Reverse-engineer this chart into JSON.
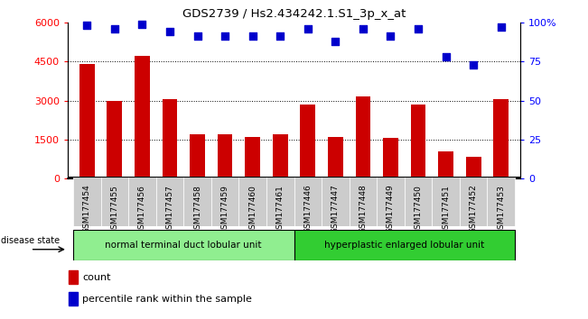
{
  "title": "GDS2739 / Hs2.434242.1.S1_3p_x_at",
  "samples": [
    "GSM177454",
    "GSM177455",
    "GSM177456",
    "GSM177457",
    "GSM177458",
    "GSM177459",
    "GSM177460",
    "GSM177461",
    "GSM177446",
    "GSM177447",
    "GSM177448",
    "GSM177449",
    "GSM177450",
    "GSM177451",
    "GSM177452",
    "GSM177453"
  ],
  "counts": [
    4400,
    3000,
    4700,
    3050,
    1700,
    1700,
    1600,
    1700,
    2850,
    1600,
    3150,
    1550,
    2850,
    1050,
    850,
    3050
  ],
  "percentiles": [
    98,
    96,
    99,
    94,
    91,
    91,
    91,
    91,
    96,
    88,
    96,
    91,
    96,
    78,
    73,
    97
  ],
  "bar_color": "#cc0000",
  "dot_color": "#0000cc",
  "ylim_left": [
    0,
    6000
  ],
  "ylim_right": [
    0,
    100
  ],
  "yticks_left": [
    0,
    1500,
    3000,
    4500,
    6000
  ],
  "yticks_right": [
    0,
    25,
    50,
    75,
    100
  ],
  "group1_label": "normal terminal duct lobular unit",
  "group2_label": "hyperplastic enlarged lobular unit",
  "group1_count": 8,
  "group2_count": 8,
  "disease_state_label": "disease state",
  "legend_count_label": "count",
  "legend_percentile_label": "percentile rank within the sample",
  "bg_color": "#ffffff",
  "group1_color": "#90EE90",
  "group2_color": "#32CD32",
  "tick_bg_color": "#cccccc"
}
